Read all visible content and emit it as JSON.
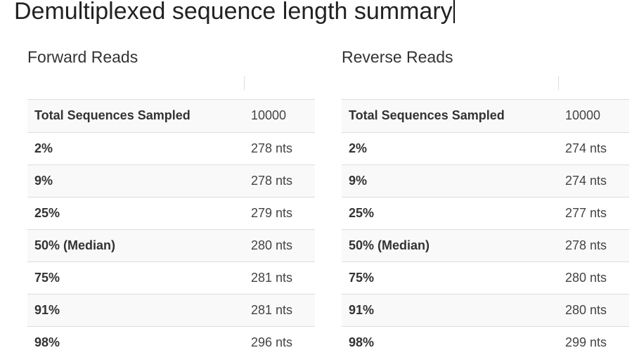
{
  "page": {
    "title": "Demultiplexed sequence length summary"
  },
  "forward": {
    "heading": "Forward Reads",
    "rows": [
      {
        "label": "Total Sequences Sampled",
        "value": "10000"
      },
      {
        "label": "2%",
        "value": "278 nts"
      },
      {
        "label": "9%",
        "value": "278 nts"
      },
      {
        "label": "25%",
        "value": "279 nts"
      },
      {
        "label": "50% (Median)",
        "value": "280 nts"
      },
      {
        "label": "75%",
        "value": "281 nts"
      },
      {
        "label": "91%",
        "value": "281 nts"
      },
      {
        "label": "98%",
        "value": "296 nts"
      }
    ]
  },
  "reverse": {
    "heading": "Reverse Reads",
    "rows": [
      {
        "label": "Total Sequences Sampled",
        "value": "10000"
      },
      {
        "label": "2%",
        "value": "274 nts"
      },
      {
        "label": "9%",
        "value": "274 nts"
      },
      {
        "label": "25%",
        "value": "277 nts"
      },
      {
        "label": "50% (Median)",
        "value": "278 nts"
      },
      {
        "label": "75%",
        "value": "280 nts"
      },
      {
        "label": "91%",
        "value": "280 nts"
      },
      {
        "label": "98%",
        "value": "299 nts"
      }
    ]
  },
  "colors": {
    "striped_row": "#f9f9f9",
    "border": "#dddddd",
    "text": "#333333"
  }
}
